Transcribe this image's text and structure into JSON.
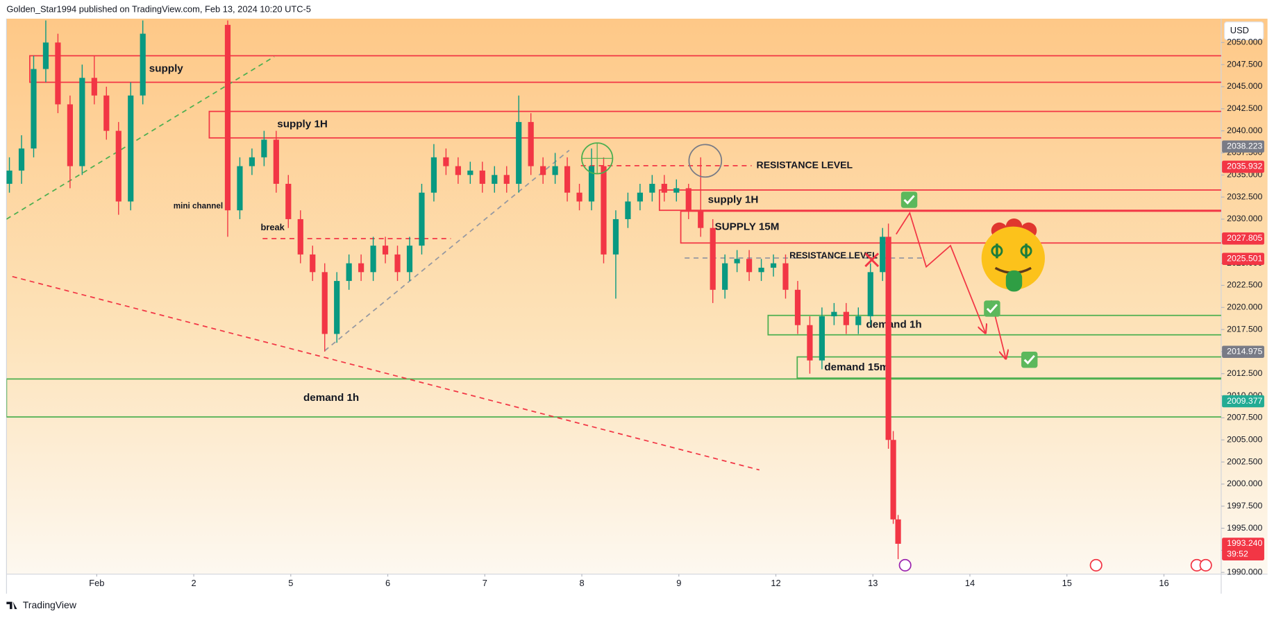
{
  "page": {
    "byline": "Golden_Star1994 published on TradingView.com, Feb 13, 2024 10:20 UTC-5",
    "brand": "TradingView",
    "currency": "USD"
  },
  "chart_data": {
    "type": "candlestick",
    "up_color": "#089981",
    "down_color": "#f23645",
    "grid": false,
    "xlim": [
      0.07,
      12.59
    ],
    "ylim": [
      1989.8,
      2052.7
    ],
    "xticks": [
      {
        "value": 1,
        "label": "Feb"
      },
      2,
      {
        "value": 3,
        "label": "5"
      },
      {
        "value": 4,
        "label": "6"
      },
      {
        "value": 5,
        "label": "7"
      },
      {
        "value": 6,
        "label": "8"
      },
      {
        "value": 7,
        "label": "9"
      },
      {
        "value": 8,
        "label": "12"
      },
      {
        "value": 9,
        "label": "13"
      },
      {
        "value": 10,
        "label": "14"
      },
      {
        "value": 11,
        "label": "15"
      },
      {
        "value": 12,
        "label": "16"
      }
    ],
    "yticks": [
      {
        "value": 1990,
        "label": "1990.000"
      },
      {
        "value": 1992.5,
        "label": "1992.500"
      },
      {
        "value": 1995,
        "label": "1995.000"
      },
      {
        "value": 1997.5,
        "label": "1997.500"
      },
      {
        "value": 2000,
        "label": "2000.000"
      },
      {
        "value": 2002.5,
        "label": "2002.500"
      },
      {
        "value": 2005,
        "label": "2005.000"
      },
      {
        "value": 2007.5,
        "label": "2007.500"
      },
      {
        "value": 2010,
        "label": "2010.000"
      },
      {
        "value": 2012.5,
        "label": "2012.500"
      },
      {
        "value": 2015,
        "label": "2015.000"
      },
      {
        "value": 2017.5,
        "label": "2017.500"
      },
      {
        "value": 2020,
        "label": "2020.000"
      },
      {
        "value": 2022.5,
        "label": "2022.500"
      },
      {
        "value": 2025,
        "label": "2025.000"
      },
      {
        "value": 2027.5,
        "label": "2027.500"
      },
      {
        "value": 2030,
        "label": "2030.000"
      },
      {
        "value": 2032.5,
        "label": "2032.500"
      },
      {
        "value": 2035,
        "label": "2035.000"
      },
      {
        "value": 2037.5,
        "label": "2037.500"
      },
      {
        "value": 2040,
        "label": "2040.000"
      },
      {
        "value": 2042.5,
        "label": "2042.500"
      },
      {
        "value": 2045,
        "label": "2045.000"
      },
      {
        "value": 2047.5,
        "label": "2047.500"
      },
      {
        "value": 2050,
        "label": "2050.000"
      }
    ],
    "candles": {
      "x": [
        0.1,
        0.225,
        0.35,
        0.475,
        0.6,
        0.725,
        0.85,
        0.975,
        1.1,
        1.225,
        1.35,
        1.475,
        2.35,
        2.475,
        2.6,
        2.725,
        2.85,
        2.975,
        3.1,
        3.225,
        3.35,
        3.475,
        3.6,
        3.725,
        3.85,
        3.975,
        4.1,
        4.225,
        4.35,
        4.475,
        4.6,
        4.725,
        4.85,
        4.975,
        5.1,
        5.225,
        5.35,
        5.475,
        5.6,
        5.725,
        5.85,
        5.975,
        6.1,
        6.225,
        6.35,
        6.475,
        6.6,
        6.725,
        6.85,
        6.975,
        7.1,
        7.225,
        7.35,
        7.475,
        7.6,
        7.725,
        7.85,
        7.975,
        8.1,
        8.225,
        8.35,
        8.475,
        8.6,
        8.725,
        8.85,
        8.975,
        9.1,
        9.16,
        9.21,
        9.26
      ],
      "open": [
        2034,
        2035.5,
        2038,
        2047,
        2050,
        2043,
        2036,
        2046,
        2044,
        2040,
        2032,
        2044,
        2052,
        2031,
        2036,
        2037,
        2039,
        2034,
        2030,
        2026,
        2024,
        2017,
        2023,
        2025,
        2024,
        2027,
        2026,
        2024,
        2027,
        2033,
        2037,
        2036,
        2035,
        2035.5,
        2034,
        2035,
        2034,
        2041,
        2036,
        2035,
        2036,
        2033,
        2032,
        2036,
        2026,
        2030,
        2032,
        2033,
        2034,
        2033,
        2033.5,
        2031,
        2029,
        2022,
        2025,
        2025.5,
        2024,
        2024.5,
        2025,
        2022,
        2018,
        2014,
        2019,
        2019.5,
        2018,
        2019,
        2024,
        2028,
        2005,
        1996
      ],
      "high": [
        2037,
        2039.5,
        2048.5,
        2052.5,
        2051,
        2044,
        2047.5,
        2048.5,
        2045,
        2041,
        2045.5,
        2052.5,
        2052.5,
        2037,
        2038,
        2040,
        2040,
        2035,
        2031,
        2027,
        2025,
        2024,
        2026,
        2026,
        2028,
        2028,
        2027,
        2028,
        2034,
        2038.5,
        2038,
        2037,
        2036.5,
        2036.5,
        2036,
        2036,
        2044,
        2042,
        2037,
        2037.5,
        2037,
        2034,
        2038,
        2037,
        2031,
        2033,
        2034,
        2035,
        2035,
        2034.5,
        2034,
        2037,
        2030,
        2026,
        2026.5,
        2026.5,
        2025.5,
        2026,
        2026,
        2023,
        2019,
        2020,
        2020.5,
        2020.5,
        2020,
        2025,
        2029,
        2029.5,
        2006,
        1996.5
      ],
      "low": [
        2033,
        2034,
        2037,
        2045.5,
        2042,
        2033.5,
        2035,
        2043,
        2039,
        2030.5,
        2031,
        2043,
        2028,
        2030,
        2035,
        2036,
        2033,
        2029,
        2025,
        2023,
        2015,
        2016,
        2022,
        2023,
        2023,
        2025,
        2023,
        2023,
        2026,
        2032,
        2035,
        2034,
        2034,
        2033,
        2033,
        2033,
        2033,
        2035,
        2034,
        2034,
        2032,
        2031,
        2031,
        2025,
        2021,
        2029,
        2031,
        2032,
        2032,
        2032,
        2030,
        2028,
        2020.5,
        2021,
        2024,
        2023,
        2023,
        2023.5,
        2021,
        2017,
        2012.5,
        2013,
        2018,
        2017,
        2017,
        2018,
        2023,
        2004,
        1995.5,
        1991.5
      ],
      "close": [
        2035.5,
        2038,
        2047,
        2050,
        2043,
        2036,
        2046,
        2044,
        2040,
        2032,
        2044,
        2051,
        2031,
        2036,
        2037,
        2039,
        2034,
        2030,
        2026,
        2024,
        2017,
        2023,
        2025,
        2024,
        2027,
        2026,
        2024,
        2027,
        2033,
        2037,
        2036,
        2035,
        2035.5,
        2034,
        2035,
        2034,
        2041,
        2036,
        2035,
        2036,
        2033,
        2032,
        2036,
        2026,
        2030,
        2032,
        2033,
        2034,
        2033,
        2033.5,
        2031,
        2029,
        2022,
        2025,
        2025.5,
        2024,
        2024.5,
        2025,
        2022,
        2018,
        2014,
        2019,
        2019.5,
        2018,
        2019,
        2024,
        2028,
        2005,
        1996,
        1993.24
      ]
    },
    "zones": [
      {
        "label": "supply",
        "top": 2048.5,
        "bottom": 2045.5,
        "x0": 0.31,
        "label_x": 1.54,
        "color": "#f23645",
        "label_color": "#131722"
      },
      {
        "label": "supply 1H",
        "top": 2042.2,
        "bottom": 2039.2,
        "x0": 2.16,
        "label_x": 2.86,
        "color": "#f23645",
        "label_color": "#f23645"
      },
      {
        "label": "supply 1H",
        "top": 2033.3,
        "bottom": 2031.0,
        "x0": 6.8,
        "label_x": 7.3,
        "color": "#f23645",
        "label_color": "#f23645"
      },
      {
        "label": "SUPPLY 15M",
        "top": 2030.9,
        "bottom": 2027.3,
        "x0": 7.02,
        "label_x": 7.37,
        "color": "#f23645",
        "label_color": "#f23645"
      },
      {
        "label": "demand 1h",
        "top": 2019.1,
        "bottom": 2016.9,
        "x0": 7.92,
        "label_x": 8.93,
        "color": "#4caf50",
        "label_color": "#4caf50"
      },
      {
        "label": "demand 15m",
        "top": 2014.4,
        "bottom": 2012.0,
        "x0": 8.22,
        "label_x": 8.5,
        "color": "#4caf50",
        "label_color": "#4caf50"
      },
      {
        "label": "demand 1h",
        "top": 2011.9,
        "bottom": 2007.6,
        "x0": 0.07,
        "label_x": 3.13,
        "color": "#4caf50",
        "label_color": "#4caf50"
      }
    ],
    "lines": [
      {
        "x": [
          0.13,
          7.83
        ],
        "y": [
          2023.5,
          2001.6
        ],
        "color": "#f23645",
        "dash": true,
        "arrow": false
      },
      {
        "x": [
          5.99,
          7.75
        ],
        "y": [
          2036.05,
          2036.05
        ],
        "color": "#f23645",
        "dash": true,
        "arrow": false
      },
      {
        "x": [
          7.06,
          9.55
        ],
        "y": [
          2025.6,
          2025.6
        ],
        "color": "#9598a1",
        "dash": true,
        "arrow": false
      },
      {
        "x": [
          2.71,
          4.65
        ],
        "y": [
          2027.8,
          2027.8
        ],
        "color": "#f23645",
        "dash": true,
        "arrow": false
      },
      {
        "x": [
          0.07,
          2.83
        ],
        "y": [
          2030.0,
          2048.4
        ],
        "color": "#4caf50",
        "dash": true,
        "arrow": false
      },
      {
        "x": [
          3.35,
          5.87
        ],
        "y": [
          2015.1,
          2037.8
        ],
        "color": "#9598a1",
        "dash": true,
        "arrow": false
      },
      {
        "x": [
          9.24,
          9.38,
          9.55,
          9.8,
          10.16
        ],
        "y": [
          2028.3,
          2030.7,
          2024.6,
          2027.0,
          2017.1
        ],
        "color": "#f23645",
        "dash": false,
        "arrow": true
      },
      {
        "x": [
          10.22,
          10.37
        ],
        "y": [
          2020.8,
          2014.2
        ],
        "color": "#f23645",
        "dash": false,
        "arrow": true
      }
    ],
    "annotations": [
      {
        "text": "mini channel",
        "x": 1.79,
        "y": 2031.45,
        "color": "#4caf50",
        "size": 10
      },
      {
        "text": "break",
        "x": 2.69,
        "y": 2029.0,
        "color": "#131722",
        "size": 11
      },
      {
        "text": "RESISTANCE LEVEL",
        "x": 7.8,
        "y": 2036.05,
        "color": "#f23645",
        "size": 12
      },
      {
        "text": "RESISTANCE LEVEL",
        "x": 8.14,
        "y": 2025.84,
        "color": "#9598a1",
        "size": 11
      }
    ],
    "price_badges": [
      {
        "value": 2038.223,
        "color": "#787b86"
      },
      {
        "value": 2035.932,
        "color": "#f23645"
      },
      {
        "value": 2027.805,
        "color": "#f23645"
      },
      {
        "value": 2025.501,
        "color": "#f23645"
      },
      {
        "value": 2014.975,
        "color": "#787b86"
      },
      {
        "value": 2009.377,
        "color": "#22ab94"
      },
      {
        "value": 1993.24,
        "label": "1993.240",
        "sublabel": "39:52",
        "color": "#f23645"
      }
    ]
  }
}
